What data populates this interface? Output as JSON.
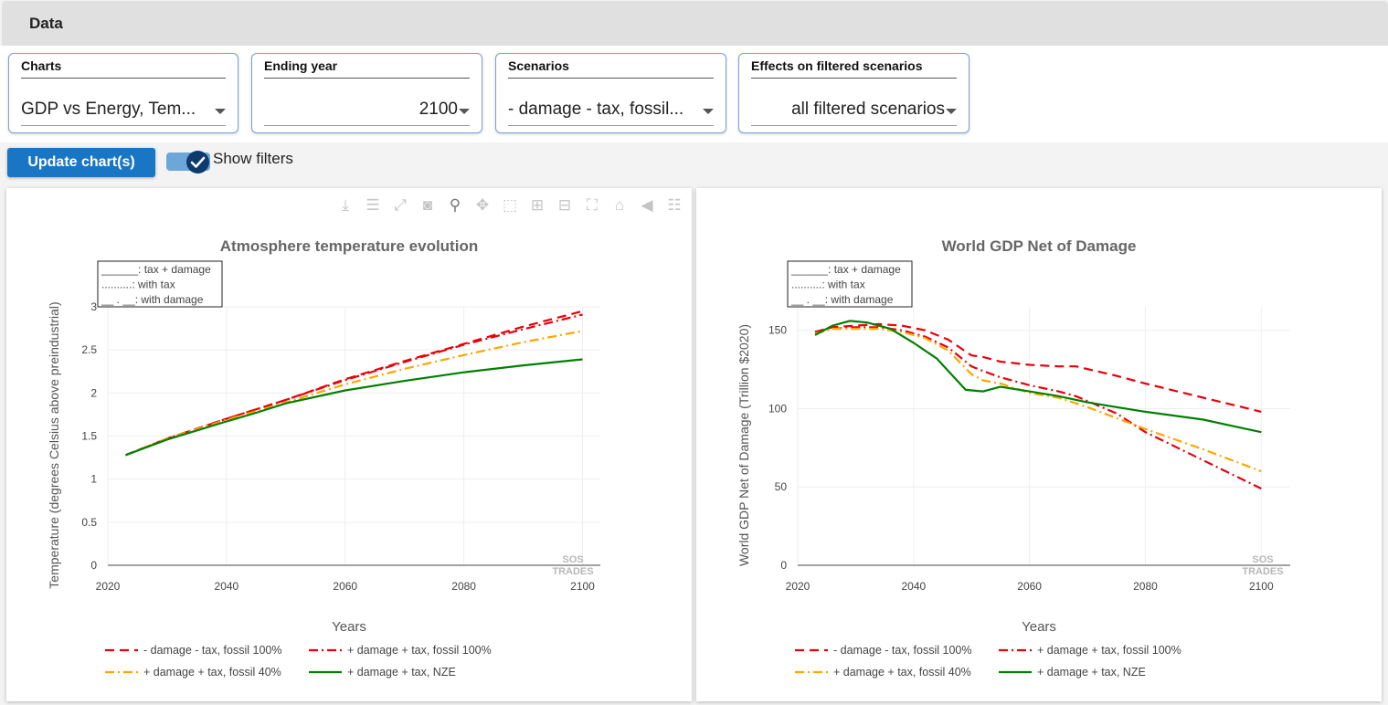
{
  "header": {
    "title": "Data"
  },
  "filters": [
    {
      "label": "Charts",
      "value": "GDP vs Energy, Tem..."
    },
    {
      "label": "Ending year",
      "value": "2100"
    },
    {
      "label": "Scenarios",
      "value": "- damage - tax, fossil..."
    },
    {
      "label": "Effects on filtered scenarios",
      "value": "all filtered scenarios"
    }
  ],
  "actions": {
    "update_label": "Update chart(s)",
    "show_filters_label": "Show filters",
    "show_filters_checked": true
  },
  "toolbar_icons": [
    "download-icon",
    "legend-icon",
    "expand-icon",
    "camera-icon",
    "zoom-icon",
    "pan-icon",
    "box-select-icon",
    "zoom-in-icon",
    "zoom-out-icon",
    "autoscale-icon",
    "home-icon",
    "hover-closest-icon",
    "hover-compare-icon"
  ],
  "line_style_legend": [
    "______: tax + damage",
    "..........: with tax",
    "__ . __: with damage"
  ],
  "series_colors": {
    "- damage - tax, fossil 100%": "#e8000b",
    "+ damage + tax, fossil 100%": "#e8000b",
    "+ damage + tax, fossil 40%": "#ffa500",
    "+ damage + tax, NZE": "#008000"
  },
  "chart_data": [
    {
      "type": "line",
      "title": "Atmosphere temperature evolution",
      "xlabel": "Years",
      "ylabel": "Temperature (degrees Celsius above preindustrial)",
      "xlim": [
        2020,
        2103
      ],
      "ylim": [
        0,
        3.0
      ],
      "xticks": [
        2020,
        2040,
        2060,
        2080,
        2100
      ],
      "yticks": [
        0,
        0.5,
        1,
        1.5,
        2,
        2.5,
        3
      ],
      "grid": true,
      "legend_position": "bottom",
      "watermark": "SOS TRADES",
      "series": [
        {
          "name": "- damage - tax, fossil 100%",
          "dash": "dash",
          "color": "#e8000b",
          "x": [
            2023,
            2030,
            2040,
            2050,
            2060,
            2070,
            2080,
            2090,
            2100
          ],
          "y": [
            1.28,
            1.47,
            1.7,
            1.92,
            2.16,
            2.37,
            2.57,
            2.77,
            2.95
          ]
        },
        {
          "name": "+ damage + tax, fossil 100%",
          "dash": "dashdot",
          "color": "#e8000b",
          "x": [
            2023,
            2030,
            2040,
            2050,
            2060,
            2070,
            2080,
            2090,
            2100
          ],
          "y": [
            1.28,
            1.47,
            1.7,
            1.92,
            2.15,
            2.36,
            2.56,
            2.74,
            2.91
          ]
        },
        {
          "name": "+ damage + tax, fossil 40%",
          "dash": "dashdot",
          "color": "#ffa500",
          "x": [
            2023,
            2030,
            2040,
            2050,
            2060,
            2070,
            2080,
            2090,
            2100
          ],
          "y": [
            1.28,
            1.47,
            1.69,
            1.89,
            2.1,
            2.28,
            2.44,
            2.59,
            2.72
          ]
        },
        {
          "name": "+ damage + tax, NZE",
          "dash": "solid",
          "color": "#008000",
          "x": [
            2023,
            2030,
            2040,
            2045,
            2050,
            2060,
            2070,
            2080,
            2090,
            2100
          ],
          "y": [
            1.28,
            1.46,
            1.67,
            1.77,
            1.88,
            2.03,
            2.14,
            2.24,
            2.32,
            2.39
          ]
        }
      ]
    },
    {
      "type": "line",
      "title": "World GDP Net of Damage",
      "xlabel": "Years",
      "ylabel": "World GDP Net of Damage (Trillion $2020)",
      "xlim": [
        2020,
        2105
      ],
      "ylim": [
        0,
        165
      ],
      "xticks": [
        2020,
        2040,
        2060,
        2080,
        2100
      ],
      "yticks": [
        0,
        50,
        100,
        150
      ],
      "grid": true,
      "legend_position": "bottom",
      "watermark": "SOS TRADES",
      "series": [
        {
          "name": "- damage - tax, fossil 100%",
          "dash": "dash",
          "color": "#e8000b",
          "x": [
            2023,
            2026,
            2030,
            2034,
            2038,
            2042,
            2046,
            2050,
            2052,
            2055,
            2060,
            2065,
            2068,
            2075,
            2080,
            2090,
            2100
          ],
          "y": [
            149,
            152,
            153,
            154,
            153,
            150,
            144,
            134,
            133,
            130,
            128,
            127,
            127,
            121,
            116,
            107,
            98
          ]
        },
        {
          "name": "+ damage + tax, fossil 100%",
          "dash": "dashdot",
          "color": "#e8000b",
          "x": [
            2023,
            2026,
            2030,
            2034,
            2038,
            2042,
            2046,
            2050,
            2052,
            2055,
            2060,
            2065,
            2068,
            2075,
            2080,
            2090,
            2100
          ],
          "y": [
            148,
            151,
            152,
            152,
            150,
            146,
            139,
            127,
            124,
            120,
            115,
            111,
            108,
            97,
            85,
            67,
            49
          ]
        },
        {
          "name": "+ damage + tax, fossil 40%",
          "dash": "dashdot",
          "color": "#ffa500",
          "x": [
            2023,
            2026,
            2030,
            2034,
            2038,
            2042,
            2046,
            2050,
            2052,
            2055,
            2060,
            2065,
            2070,
            2080,
            2090,
            2100
          ],
          "y": [
            148,
            151,
            151,
            151,
            149,
            145,
            137,
            122,
            118,
            116,
            110,
            107,
            101,
            87,
            74,
            60
          ]
        },
        {
          "name": "+ damage + tax, NZE",
          "dash": "solid",
          "color": "#008000",
          "x": [
            2023,
            2026,
            2029,
            2032,
            2036,
            2040,
            2044,
            2047,
            2049,
            2052,
            2055,
            2060,
            2065,
            2070,
            2075,
            2080,
            2090,
            2095,
            2100
          ],
          "y": [
            147,
            153,
            156,
            155,
            151,
            142,
            132,
            120,
            112,
            111,
            114,
            111,
            108,
            104,
            101,
            98,
            93,
            89,
            85
          ]
        }
      ]
    }
  ]
}
